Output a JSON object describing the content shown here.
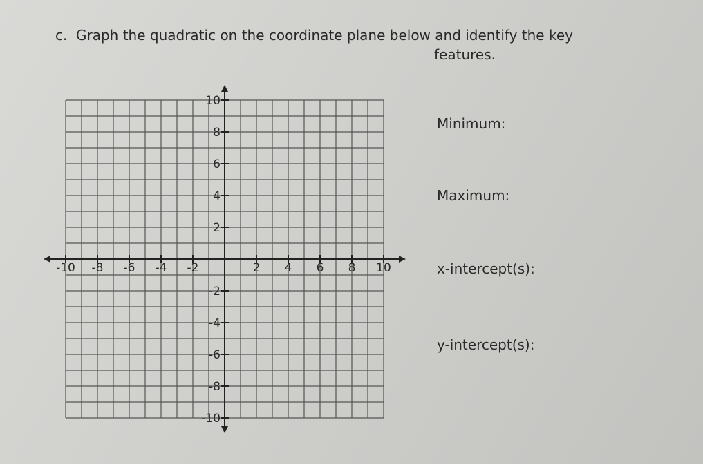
{
  "question": {
    "label": "c.",
    "text": "Graph the quadratic on the coordinate plane below and identify the key",
    "text_cont": "features."
  },
  "plane": {
    "xlim": [
      -10,
      10
    ],
    "ylim": [
      -10,
      10
    ],
    "xticks": [
      -10,
      -8,
      -6,
      -4,
      -2,
      2,
      4,
      6,
      8,
      10
    ],
    "yticks": [
      10,
      8,
      6,
      4,
      2,
      -2,
      -4,
      -6,
      -8,
      -10
    ]
  },
  "features": [
    "Minimum:",
    "Maximum:",
    "x-intercept(s):",
    "y-intercept(s):"
  ]
}
